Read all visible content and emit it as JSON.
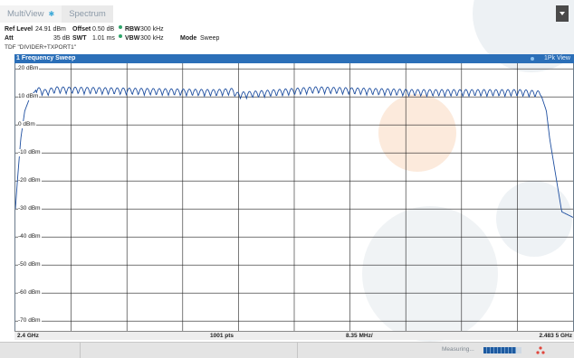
{
  "tabs": [
    {
      "label": "MultiView",
      "active": true
    },
    {
      "label": "Spectrum",
      "active": false
    }
  ],
  "settings": {
    "ref_level_label": "Ref Level",
    "ref_level_value": "24.91 dBm",
    "offset_label": "Offset",
    "offset_value": "0.50 dB",
    "rbw_label": "RBW",
    "rbw_value": "300 kHz",
    "att_label": "Att",
    "att_value": "35 dB",
    "swt_label": "SWT",
    "swt_value": "1.01 ms",
    "vbw_label": "VBW",
    "vbw_value": "300 kHz",
    "mode_label": "Mode",
    "mode_value": "Sweep",
    "tdf": "TDF \"DIVIDER+TXPORT1\""
  },
  "diagram": {
    "title": "1 Frequency Sweep",
    "trace_label": "1Pk View",
    "y_labels": [
      "20 dBm",
      "10 dBm",
      "0 dBm",
      "-10 dBm",
      "-20 dBm",
      "-30 dBm",
      "-40 dBm",
      "-50 dBm",
      "-60 dBm",
      "-70 dBm"
    ]
  },
  "footer": {
    "start_freq": "2.4 GHz",
    "points": "1001 pts",
    "span_per_div": "8.35 MHz/",
    "stop_freq": "2.483 5 GHz"
  },
  "status": {
    "measuring_label": "Measuring...",
    "progress": 0.85
  },
  "colors": {
    "accent": "#2b6fb8",
    "trace": "#1f4fa0",
    "grid": "#222222",
    "coupled_dot": "#2ea56a"
  },
  "icons": {
    "menu": "dropdown-arrow-icon",
    "status": "three-dots-icon"
  },
  "chart_data": {
    "type": "line",
    "title": "1 Frequency Sweep",
    "xlabel": "",
    "ylabel": "",
    "xlim": [
      2.4,
      2.4835
    ],
    "ylim": [
      -73.5,
      22
    ],
    "x_unit": "GHz",
    "y_unit": "dBm",
    "series": [
      {
        "name": "1Pk View",
        "x": [
          2.4,
          2.4003,
          2.4008,
          2.4014,
          2.4022,
          2.4031,
          2.4045,
          2.406,
          2.43,
          2.4327,
          2.433,
          2.445,
          2.46,
          2.476,
          2.4785,
          2.4788,
          2.4795,
          2.48,
          2.4818,
          2.4835
        ],
        "y": [
          -30,
          -20,
          -5,
          5,
          10,
          12.5,
          11.5,
          12.5,
          11.5,
          12,
          10.5,
          12.5,
          11.5,
          11.5,
          11,
          10,
          5,
          -5,
          -31,
          -33
        ],
        "ripple_db": 2.5
      }
    ]
  }
}
